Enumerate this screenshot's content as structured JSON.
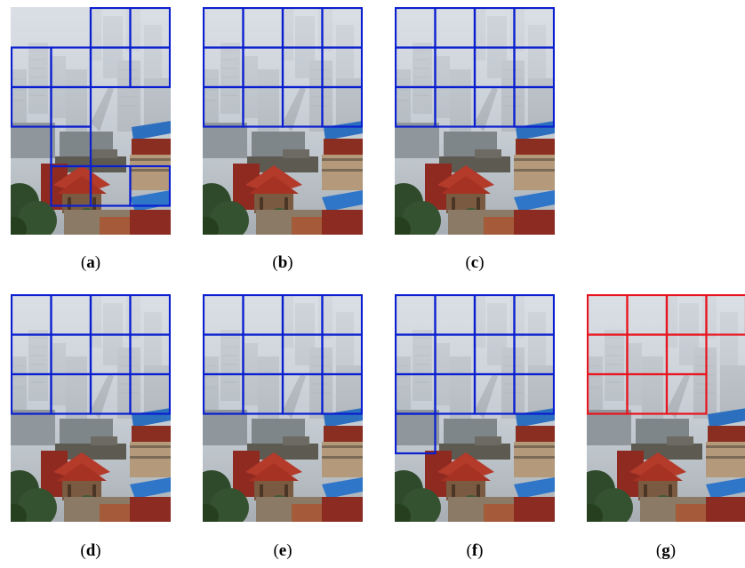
{
  "figure": {
    "panels": [
      {
        "id": "a",
        "caption_open": "(",
        "caption_letter": "a",
        "caption_close": ")",
        "grid_color": "#0a1fd0",
        "selected_blocks": [
          [
            0,
            2
          ],
          [
            0,
            3
          ],
          [
            1,
            0
          ],
          [
            1,
            1
          ],
          [
            1,
            2
          ],
          [
            1,
            3
          ],
          [
            2,
            0
          ],
          [
            2,
            1
          ],
          [
            3,
            1
          ],
          [
            4,
            1
          ],
          [
            4,
            2
          ],
          [
            4,
            3
          ]
        ]
      },
      {
        "id": "b",
        "caption_open": "(",
        "caption_letter": "b",
        "caption_close": ")",
        "grid_color": "#0a1fd0",
        "selected_blocks": [
          [
            0,
            0
          ],
          [
            0,
            1
          ],
          [
            0,
            2
          ],
          [
            0,
            3
          ],
          [
            1,
            0
          ],
          [
            1,
            1
          ],
          [
            1,
            2
          ],
          [
            1,
            3
          ],
          [
            2,
            0
          ],
          [
            2,
            1
          ],
          [
            2,
            2
          ],
          [
            2,
            3
          ]
        ]
      },
      {
        "id": "c",
        "caption_open": "(",
        "caption_letter": "c",
        "caption_close": ")",
        "grid_color": "#0a1fd0",
        "selected_blocks": [
          [
            0,
            0
          ],
          [
            0,
            1
          ],
          [
            0,
            2
          ],
          [
            0,
            3
          ],
          [
            1,
            0
          ],
          [
            1,
            1
          ],
          [
            1,
            2
          ],
          [
            1,
            3
          ],
          [
            2,
            0
          ],
          [
            2,
            1
          ],
          [
            2,
            2
          ],
          [
            2,
            3
          ]
        ]
      },
      {
        "id": "d",
        "caption_open": "(",
        "caption_letter": "d",
        "caption_close": ")",
        "grid_color": "#0a1fd0",
        "selected_blocks": [
          [
            0,
            0
          ],
          [
            0,
            1
          ],
          [
            0,
            2
          ],
          [
            0,
            3
          ],
          [
            1,
            0
          ],
          [
            1,
            1
          ],
          [
            1,
            2
          ],
          [
            1,
            3
          ],
          [
            2,
            0
          ],
          [
            2,
            1
          ],
          [
            2,
            2
          ],
          [
            2,
            3
          ]
        ]
      },
      {
        "id": "e",
        "caption_open": "(",
        "caption_letter": "e",
        "caption_close": ")",
        "grid_color": "#0a1fd0",
        "selected_blocks": [
          [
            0,
            0
          ],
          [
            0,
            1
          ],
          [
            0,
            2
          ],
          [
            0,
            3
          ],
          [
            1,
            0
          ],
          [
            1,
            1
          ],
          [
            1,
            2
          ],
          [
            1,
            3
          ],
          [
            2,
            0
          ],
          [
            2,
            1
          ],
          [
            2,
            2
          ],
          [
            2,
            3
          ]
        ]
      },
      {
        "id": "f",
        "caption_open": "(",
        "caption_letter": "f",
        "caption_close": ")",
        "grid_color": "#0a1fd0",
        "selected_blocks": [
          [
            0,
            0
          ],
          [
            0,
            1
          ],
          [
            0,
            2
          ],
          [
            0,
            3
          ],
          [
            1,
            0
          ],
          [
            1,
            1
          ],
          [
            1,
            2
          ],
          [
            1,
            3
          ],
          [
            2,
            0
          ],
          [
            2,
            1
          ],
          [
            2,
            2
          ],
          [
            2,
            3
          ],
          [
            3,
            0
          ]
        ]
      },
      {
        "id": "g",
        "caption_open": "(",
        "caption_letter": "g",
        "caption_close": ")",
        "grid_color": "#e8141e",
        "selected_blocks": [
          [
            0,
            0
          ],
          [
            0,
            1
          ],
          [
            0,
            2
          ],
          [
            0,
            3
          ],
          [
            1,
            0
          ],
          [
            1,
            1
          ],
          [
            1,
            2
          ],
          [
            2,
            0
          ],
          [
            2,
            1
          ],
          [
            2,
            2
          ]
        ]
      }
    ]
  }
}
